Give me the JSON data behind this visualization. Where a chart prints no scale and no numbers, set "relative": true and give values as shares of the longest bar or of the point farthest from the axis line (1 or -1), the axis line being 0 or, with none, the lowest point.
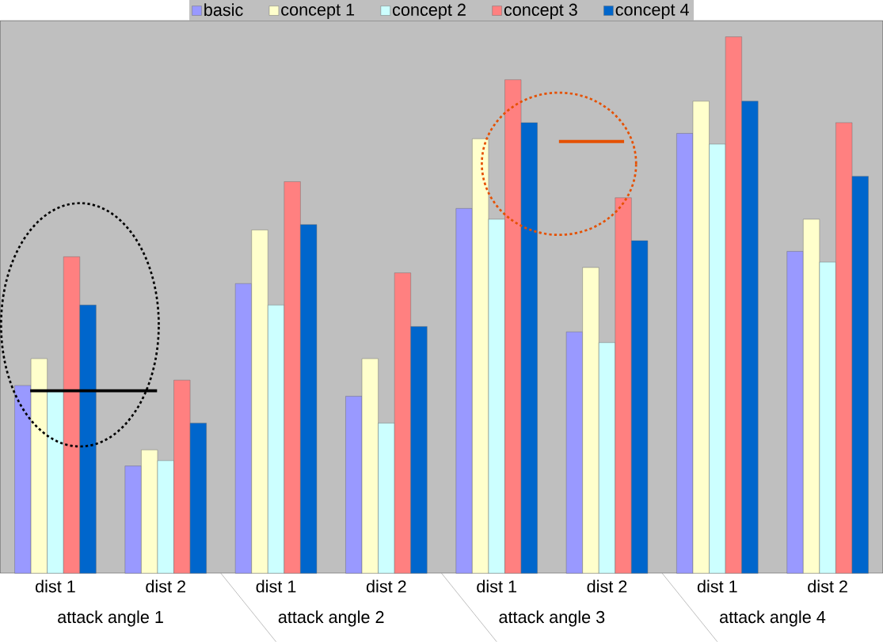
{
  "chart_data": {
    "type": "bar",
    "relative": true,
    "legend": "top",
    "categories": [
      "dist 1",
      "dist 2",
      "dist 1",
      "dist 2",
      "dist 1",
      "dist 2",
      "dist 1",
      "dist 2"
    ],
    "series": [
      {
        "name": "basic",
        "color": "#9999ff",
        "values": [
          0.35,
          0.2,
          0.54,
          0.33,
          0.68,
          0.45,
          0.82,
          0.6
        ]
      },
      {
        "name": "concept 1",
        "color": "#ffffcc",
        "values": [
          0.4,
          0.23,
          0.64,
          0.4,
          0.81,
          0.57,
          0.88,
          0.66
        ]
      },
      {
        "name": "concept 2",
        "color": "#ccffff",
        "values": [
          0.34,
          0.21,
          0.5,
          0.28,
          0.66,
          0.43,
          0.8,
          0.58
        ]
      },
      {
        "name": "concept 3",
        "color": "#ff8080",
        "values": [
          0.59,
          0.36,
          0.73,
          0.56,
          0.92,
          0.7,
          1,
          0.84
        ]
      },
      {
        "name": "concept 4",
        "color": "#0066cc",
        "values": [
          0.5,
          0.28,
          0.65,
          0.46,
          0.84,
          0.62,
          0.88,
          0.74
        ]
      }
    ],
    "annotations": [
      "attack angle 1",
      "attack angle 2",
      "attack angle 3",
      "attack angle 4"
    ]
  }
}
